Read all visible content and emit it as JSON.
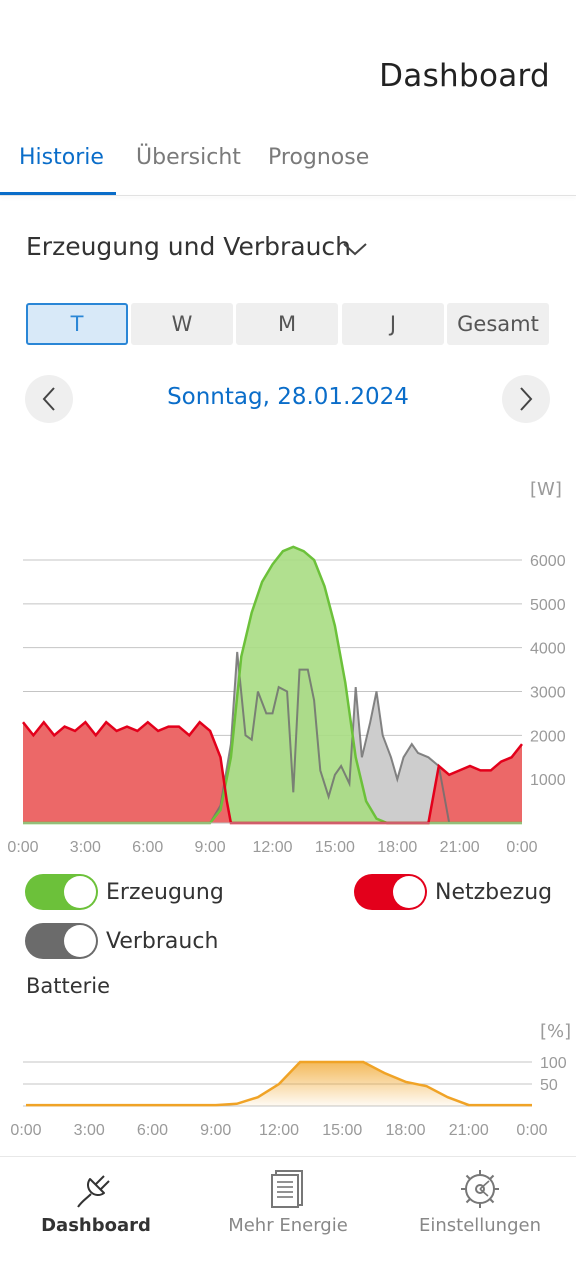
{
  "header": {
    "title": "Dashboard"
  },
  "tabs": [
    {
      "label": "Historie",
      "active": true
    },
    {
      "label": "Übersicht",
      "active": false
    },
    {
      "label": "Prognose",
      "active": false
    }
  ],
  "section": {
    "title": "Erzeugung und Verbrauch",
    "chevron_icon": "chevron-down-icon"
  },
  "period_selector": [
    {
      "label": "T",
      "active": true
    },
    {
      "label": "W",
      "active": false
    },
    {
      "label": "M",
      "active": false
    },
    {
      "label": "J",
      "active": false
    },
    {
      "label": "Gesamt",
      "active": false
    }
  ],
  "date_nav": {
    "label": "Sonntag, 28.01.2024",
    "prev_icon": "chevron-left-icon",
    "next_icon": "chevron-right-icon"
  },
  "colors": {
    "accent": "#0a6dc9",
    "erzeugung": "#6cc13a",
    "erzeugung_fill": "#a8dd83",
    "netzbezug": "#e3001b",
    "netzbezug_fill": "#ec6868",
    "verbrauch": "#707070",
    "verbrauch_fill": "#cdcdcd",
    "batterie": "#f0a326"
  },
  "chart_data": [
    {
      "type": "area",
      "unit": "[W]",
      "ylim": [
        0,
        6000
      ],
      "yticks": [
        "1000",
        "2000",
        "3000",
        "4000",
        "5000",
        "6000"
      ],
      "xticks": [
        "0:00",
        "3:00",
        "6:00",
        "9:00",
        "12:00",
        "15:00",
        "18:00",
        "21:00",
        "0:00"
      ],
      "grid": true,
      "series": [
        {
          "name": "Verbrauch",
          "x": [
            0,
            9,
            9.5,
            10,
            10.3,
            10.7,
            11,
            11.3,
            11.7,
            12,
            12.3,
            12.7,
            13,
            13.3,
            13.7,
            14,
            14.3,
            14.7,
            15,
            15.3,
            15.7,
            16,
            16.3,
            16.7,
            17,
            17.3,
            17.7,
            18,
            18.3,
            18.7,
            19,
            19.5,
            20,
            20.5,
            21,
            21.5,
            24
          ],
          "y": [
            0,
            0,
            400,
            1800,
            3900,
            2000,
            1900,
            3000,
            2500,
            2500,
            3100,
            3000,
            700,
            3500,
            3500,
            2800,
            1200,
            600,
            1100,
            1300,
            900,
            3100,
            1500,
            2300,
            3000,
            2000,
            1500,
            1000,
            1500,
            1800,
            1600,
            1500,
            1300,
            0,
            0,
            0,
            0
          ]
        },
        {
          "name": "Erzeugung",
          "x": [
            0,
            9,
            9.5,
            10,
            10.5,
            11,
            11.5,
            12,
            12.5,
            13,
            13.5,
            14,
            14.5,
            15,
            15.5,
            16,
            16.5,
            17,
            17.5,
            24
          ],
          "y": [
            0,
            0,
            300,
            1500,
            3800,
            4800,
            5500,
            5900,
            6200,
            6300,
            6200,
            6000,
            5400,
            4500,
            3200,
            1500,
            500,
            100,
            0,
            0
          ]
        },
        {
          "name": "Netzbezug",
          "x": [
            0,
            0.5,
            1,
            1.5,
            2,
            2.5,
            3,
            3.5,
            4,
            4.5,
            5,
            5.5,
            6,
            6.5,
            7,
            7.5,
            8,
            8.5,
            9,
            9.5,
            9.8,
            10,
            19.5,
            20,
            20.5,
            21,
            21.5,
            22,
            22.5,
            23,
            23.5,
            24
          ],
          "y": [
            2300,
            2000,
            2300,
            2000,
            2200,
            2100,
            2300,
            2000,
            2300,
            2100,
            2200,
            2100,
            2300,
            2100,
            2200,
            2200,
            2000,
            2300,
            2100,
            1500,
            500,
            0,
            0,
            1300,
            1100,
            1200,
            1300,
            1200,
            1200,
            1400,
            1500,
            1800
          ]
        }
      ]
    },
    {
      "type": "area",
      "unit": "[%]",
      "ylim": [
        0,
        100
      ],
      "yticks": [
        "50",
        "100"
      ],
      "xticks": [
        "0:00",
        "3:00",
        "6:00",
        "9:00",
        "12:00",
        "15:00",
        "18:00",
        "21:00",
        "0:00"
      ],
      "grid": true,
      "series": [
        {
          "name": "Batterie",
          "x": [
            0,
            3,
            6,
            9,
            10,
            11,
            12,
            13,
            14,
            15,
            16,
            17,
            18,
            19,
            20,
            21,
            22,
            23,
            24
          ],
          "y": [
            2,
            2,
            2,
            2,
            5,
            20,
            50,
            100,
            100,
            100,
            100,
            75,
            55,
            45,
            20,
            2,
            2,
            2,
            2
          ]
        }
      ]
    }
  ],
  "legend": {
    "erzeugung": {
      "label": "Erzeugung",
      "on": true
    },
    "netzbezug": {
      "label": "Netzbezug",
      "on": true
    },
    "verbrauch": {
      "label": "Verbrauch",
      "on": true
    }
  },
  "battery": {
    "label": "Batterie"
  },
  "bottom_nav": [
    {
      "label": "Dashboard",
      "icon": "plug-icon",
      "active": true
    },
    {
      "label": "Mehr Energie",
      "icon": "document-icon",
      "active": false
    },
    {
      "label": "Einstellungen",
      "icon": "settings-icon",
      "active": false
    }
  ]
}
